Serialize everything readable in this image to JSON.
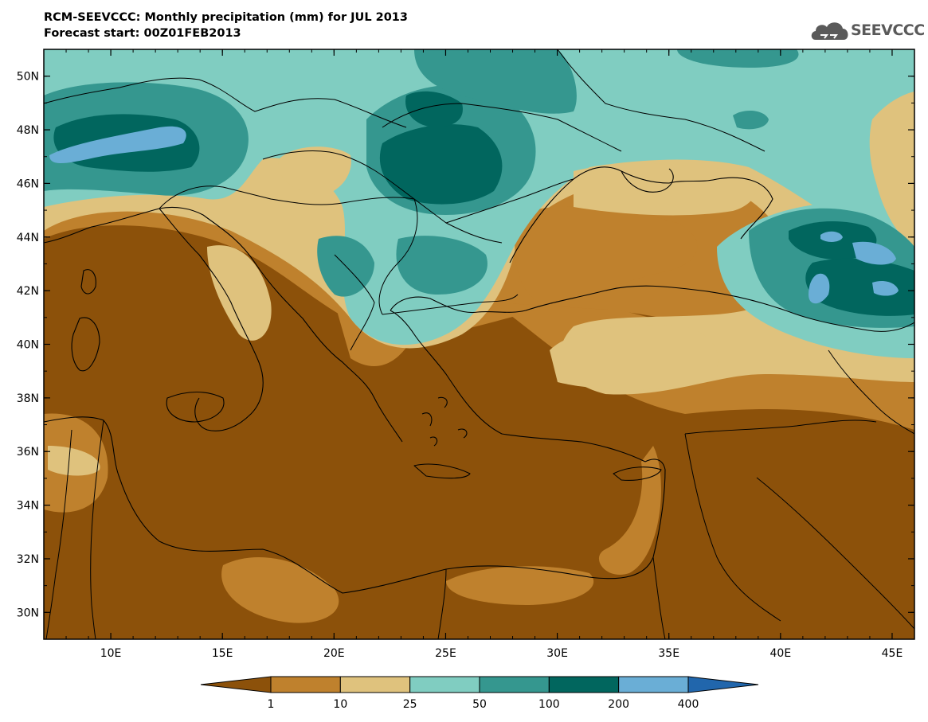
{
  "header": {
    "title": "RCM-SEEVCCC: Monthly precipitation (mm) for JUL 2013",
    "subtitle": "Forecast start: 00Z01FEB2013"
  },
  "logo": {
    "text": "SEEVCCC",
    "icon": "cloud-logo-icon",
    "color": "#5a5a5a"
  },
  "map": {
    "lon_range": [
      7,
      46
    ],
    "lat_range": [
      29,
      51
    ],
    "lon_ticks": [
      10,
      15,
      20,
      25,
      30,
      35,
      40,
      45
    ],
    "lon_tick_labels": [
      "10E",
      "15E",
      "20E",
      "25E",
      "30E",
      "35E",
      "40E",
      "45E"
    ],
    "lat_ticks": [
      30,
      32,
      34,
      36,
      38,
      40,
      42,
      44,
      46,
      48,
      50
    ],
    "lat_tick_labels": [
      "30N",
      "32N",
      "34N",
      "36N",
      "38N",
      "40N",
      "42N",
      "44N",
      "46N",
      "48N",
      "50N"
    ]
  },
  "colorbar": {
    "boundaries": [
      "1",
      "10",
      "25",
      "50",
      "100",
      "200",
      "400"
    ],
    "colors": [
      "#8c510a",
      "#bf812d",
      "#dfc27d",
      "#80cdc1",
      "#35978f",
      "#01665e",
      "#6aaed6",
      "#2166ac"
    ]
  }
}
